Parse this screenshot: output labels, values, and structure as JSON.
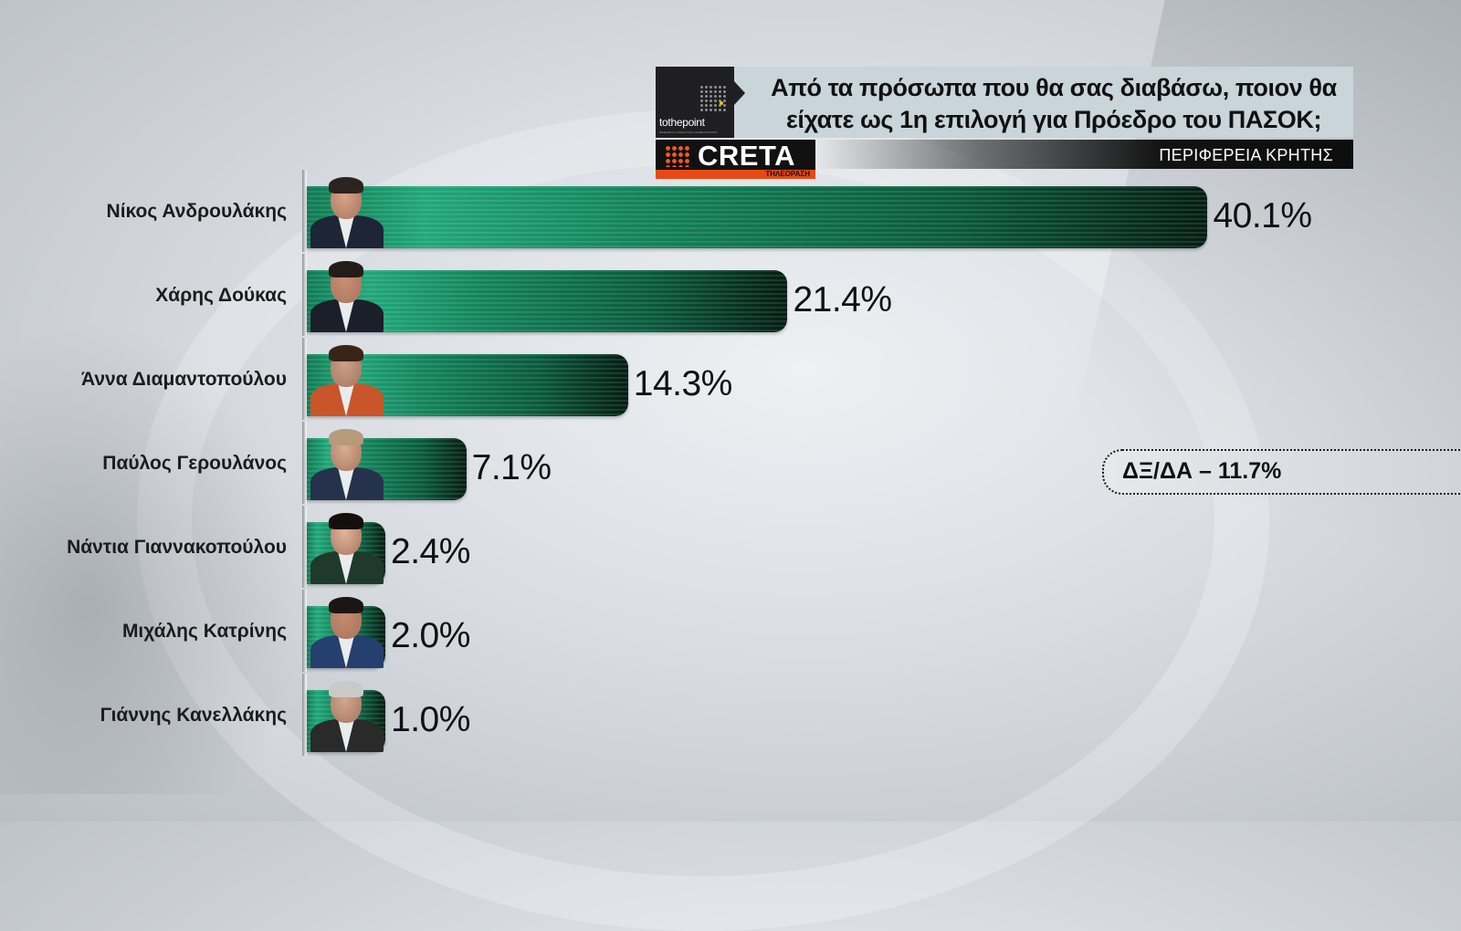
{
  "header": {
    "logo_text": "tothepoint",
    "logo_subtext": "RESEARCH CONSULTING COMMUNICATION",
    "question": "Από τα πρόσωπα που θα σας διαβάσω, ποιον θα είχατε ως 1η επιλογή για Πρόεδρο του ΠΑΣΟΚ;",
    "channel_name": "CRETA",
    "channel_sub": "ΤΗΛΕΟΡΑΣΗ",
    "region": "ΠΕΡΙΦΕΡΕΙΑ ΚΡΗΤΗΣ"
  },
  "colors": {
    "bar_light": "#21a77a",
    "bar_dark": "#051d13",
    "header_question_bg": "#c9d4db",
    "channel_accent": "#e84a16"
  },
  "chart_data": {
    "type": "bar",
    "orientation": "horizontal",
    "title": "Από τα πρόσωπα που θα σας διαβάσω, ποιον θα είχατε ως 1η επιλογή για Πρόεδρο του ΠΑΣΟΚ;",
    "subtitle": "ΠΕΡΙΦΕΡΕΙΑ ΚΡΗΤΗΣ",
    "categories": [
      "Νίκος Ανδρουλάκης",
      "Χάρης Δούκας",
      "Άννα Διαμαντοπούλου",
      "Παύλος Γερουλάνος",
      "Νάντια Γιαννακοπούλου",
      "Μιχάλης Κατρίνης",
      "Γιάννης Κανελλάκης"
    ],
    "values": [
      40.1,
      21.4,
      14.3,
      7.1,
      2.4,
      2.0,
      1.0
    ],
    "value_labels": [
      "40.1%",
      "21.4%",
      "14.3%",
      "7.1%",
      "2.4%",
      "2.0%",
      "1.0%"
    ],
    "unit": "%",
    "xlim": [
      0,
      45
    ],
    "grid": false,
    "legend": "none",
    "annotation": "ΔΞ/ΔΑ – 11.7%"
  }
}
